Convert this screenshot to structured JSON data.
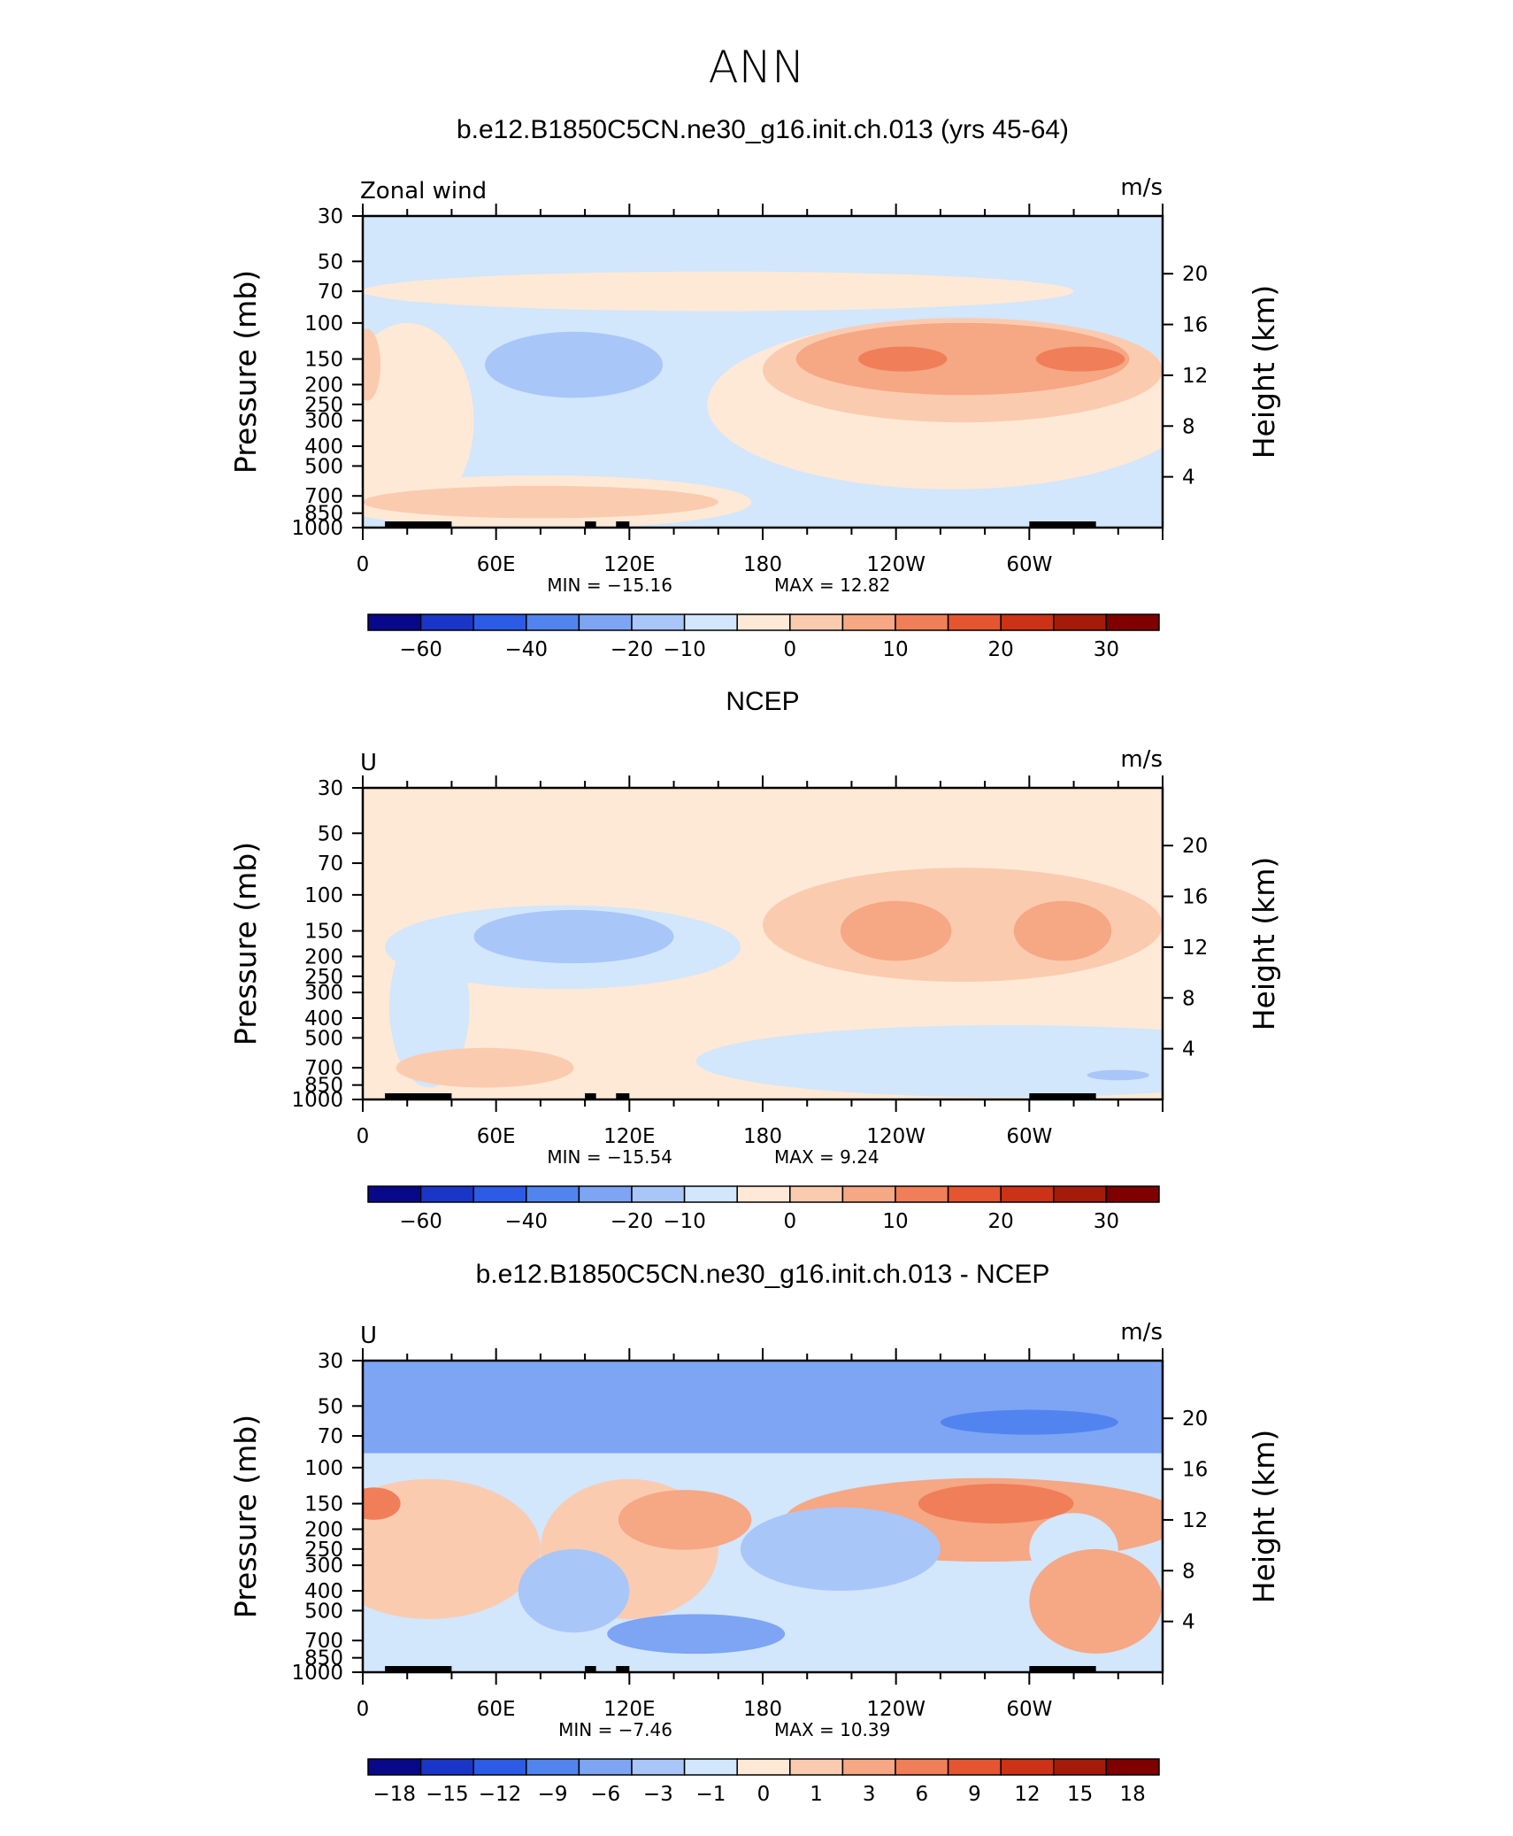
{
  "figure_title": "ANN",
  "colors": {
    "frame": "#000000",
    "land": "#000000",
    "background": "#ffffff"
  },
  "chart_data": [
    {
      "type": "heatmap",
      "title": "b.e12.B1850C5CN.ne30_g16.init.ch.013 (yrs 45-64)",
      "variable_label": "Zonal wind",
      "units": "m/s",
      "ylabel": "Pressure (mb)",
      "ylabel_right": "Height (km)",
      "x_ticks": [
        "0",
        "60E",
        "120E",
        "180",
        "120W",
        "60W"
      ],
      "y_ticks": [
        "30",
        "50",
        "70",
        "100",
        "150",
        "200",
        "250",
        "300",
        "400",
        "500",
        "700",
        "850",
        "1000"
      ],
      "height_ticks": [
        "20",
        "16",
        "12",
        "8",
        "4"
      ],
      "xlim": [
        0,
        360
      ],
      "ylim": [
        1000,
        30
      ],
      "min_label": "MIN = −15.16",
      "max_label": "MAX = 12.82",
      "min": -15.16,
      "max": 12.82,
      "levels": [
        -70,
        -60,
        -50,
        -40,
        -30,
        -20,
        -15,
        -10,
        -5,
        0,
        5,
        10,
        15,
        20,
        25,
        30,
        35
      ],
      "colorbar_labels": [
        "−60",
        "−40",
        "−20",
        "−10",
        "0",
        "10",
        "20",
        "30"
      ],
      "colorbar_colors": [
        "#08088a",
        "#1a36c8",
        "#2c5be6",
        "#5184ee",
        "#7da5f4",
        "#a9c6f8",
        "#d2e6fc",
        "#fde9d6",
        "#fbcbb0",
        "#f6a784",
        "#f07e59",
        "#e55530",
        "#cc3316",
        "#a51b0a",
        "#800000"
      ]
    },
    {
      "type": "heatmap",
      "title": "NCEP",
      "variable_label": "U",
      "units": "m/s",
      "ylabel": "Pressure (mb)",
      "ylabel_right": "Height (km)",
      "x_ticks": [
        "0",
        "60E",
        "120E",
        "180",
        "120W",
        "60W"
      ],
      "y_ticks": [
        "30",
        "50",
        "70",
        "100",
        "150",
        "200",
        "250",
        "300",
        "400",
        "500",
        "700",
        "850",
        "1000"
      ],
      "height_ticks": [
        "20",
        "16",
        "12",
        "8",
        "4"
      ],
      "xlim": [
        0,
        360
      ],
      "ylim": [
        1000,
        30
      ],
      "min_label": "MIN = −15.54",
      "max_label": "MAX = 9.24",
      "min": -15.54,
      "max": 9.24,
      "levels": [
        -70,
        -60,
        -50,
        -40,
        -30,
        -20,
        -15,
        -10,
        -5,
        0,
        5,
        10,
        15,
        20,
        25,
        30,
        35
      ],
      "colorbar_labels": [
        "−60",
        "−40",
        "−20",
        "−10",
        "0",
        "10",
        "20",
        "30"
      ],
      "colorbar_colors": [
        "#08088a",
        "#1a36c8",
        "#2c5be6",
        "#5184ee",
        "#7da5f4",
        "#a9c6f8",
        "#d2e6fc",
        "#fde9d6",
        "#fbcbb0",
        "#f6a784",
        "#f07e59",
        "#e55530",
        "#cc3316",
        "#a51b0a",
        "#800000"
      ]
    },
    {
      "type": "heatmap",
      "title": "b.e12.B1850C5CN.ne30_g16.init.ch.013 - NCEP",
      "variable_label": "U",
      "units": "m/s",
      "ylabel": "Pressure (mb)",
      "ylabel_right": "Height (km)",
      "x_ticks": [
        "0",
        "60E",
        "120E",
        "180",
        "120W",
        "60W"
      ],
      "y_ticks": [
        "30",
        "50",
        "70",
        "100",
        "150",
        "200",
        "250",
        "300",
        "400",
        "500",
        "700",
        "850",
        "1000"
      ],
      "height_ticks": [
        "20",
        "16",
        "12",
        "8",
        "4"
      ],
      "xlim": [
        0,
        360
      ],
      "ylim": [
        1000,
        30
      ],
      "min_label": "MIN = −7.46",
      "max_label": "MAX = 10.39",
      "min": -7.46,
      "max": 10.39,
      "levels": [
        -20,
        -18,
        -15,
        -12,
        -9,
        -6,
        -3,
        -1,
        0,
        1,
        3,
        6,
        9,
        12,
        15,
        18,
        20
      ],
      "colorbar_labels": [
        "−18",
        "−15",
        "−12",
        "−9",
        "−6",
        "−3",
        "−1",
        "0",
        "1",
        "3",
        "6",
        "9",
        "12",
        "15",
        "18"
      ],
      "colorbar_colors": [
        "#08088a",
        "#1a36c8",
        "#2c5be6",
        "#5184ee",
        "#7da5f4",
        "#a9c6f8",
        "#d2e6fc",
        "#fde9d6",
        "#fbcbb0",
        "#f6a784",
        "#f07e59",
        "#e55530",
        "#cc3316",
        "#a51b0a",
        "#800000"
      ]
    }
  ]
}
